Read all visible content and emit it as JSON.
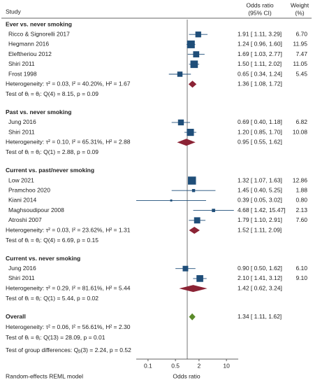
{
  "chart_data": {
    "type": "forest",
    "header": {
      "study": "Study",
      "effect": "Odds ratio",
      "ci": "(95% CI)",
      "weight": "Weight",
      "weight_unit": "(%)"
    },
    "xlabel": "Odds ratio",
    "note": "Random-effects REML model",
    "xscale": "log",
    "xlim": [
      0.05,
      20
    ],
    "xticks": [
      0.1,
      0.5,
      2,
      10
    ],
    "square_color": "#1f4e79",
    "subgroup_color": "#8b2335",
    "overall_color": "#5a8a2a",
    "groups": [
      {
        "name": "Ever vs. never smoking",
        "studies": [
          "Ricco & Signorelli 2017",
          "Hegmann 2016",
          "Eleftheriou 2012",
          "Shiri 2011",
          "Frost 1998"
        ],
        "values": [
          1.91,
          1.24,
          1.69,
          1.5,
          0.65
        ],
        "lo": [
          1.11,
          0.96,
          1.03,
          1.11,
          0.34
        ],
        "hi": [
          3.29,
          1.6,
          2.77,
          2.02,
          1.24
        ],
        "value_labels": [
          "1.91 [ 1.11, 3.29]",
          "1.24 [ 0.96, 1.60]",
          "1.69 [ 1.03, 2.77]",
          "1.50 [ 1.11, 2.02]",
          "0.65 [ 0.34, 1.24]"
        ],
        "weights": [
          6.7,
          11.95,
          7.47,
          11.05,
          5.45
        ],
        "weight_labels": [
          "6.70",
          "11.95",
          "7.47",
          "11.05",
          "5.45"
        ],
        "pooled": {
          "value": 1.36,
          "lo": 1.08,
          "hi": 1.72,
          "label": "1.36 [ 1.08, 1.72]"
        },
        "heterogeneity": "Heterogeneity: τ² = 0.03, I² = 40.20%, H² = 1.67",
        "test": "Test of θᵢ = θⱼ: Q(4) = 8.15, p = 0.09"
      },
      {
        "name": "Past vs. never smoking",
        "studies": [
          "Jung 2016",
          "Shiri 2011"
        ],
        "values": [
          0.69,
          1.2
        ],
        "lo": [
          0.4,
          0.85
        ],
        "hi": [
          1.18,
          1.7
        ],
        "value_labels": [
          "0.69 [ 0.40, 1.18]",
          "1.20 [ 0.85, 1.70]"
        ],
        "weights": [
          6.82,
          10.08
        ],
        "weight_labels": [
          "6.82",
          "10.08"
        ],
        "pooled": {
          "value": 0.95,
          "lo": 0.55,
          "hi": 1.62,
          "label": "0.95 [ 0.55, 1.62]"
        },
        "heterogeneity": "Heterogeneity: τ² = 0.10, I² = 65.31%, H² = 2.88",
        "test": "Test of θᵢ = θⱼ: Q(1) = 2.88, p = 0.09"
      },
      {
        "name": "Current vs. past/never smoking",
        "studies": [
          "Low 2021",
          "Pramchoo 2020",
          "Kiani 2014",
          "Maghsoudipour 2008",
          "Atroshi 2007"
        ],
        "values": [
          1.32,
          1.45,
          0.39,
          4.68,
          1.79
        ],
        "lo": [
          1.07,
          0.4,
          0.05,
          1.42,
          1.1
        ],
        "hi": [
          1.63,
          5.25,
          3.02,
          15.47,
          2.91
        ],
        "value_labels": [
          "1.32 [ 1.07, 1.63]",
          "1.45 [ 0.40, 5.25]",
          "0.39 [ 0.05, 3.02]",
          "4.68 [ 1.42, 15.47]",
          "1.79 [ 1.10, 2.91]"
        ],
        "weights": [
          12.86,
          1.88,
          0.8,
          2.13,
          7.6
        ],
        "weight_labels": [
          "12.86",
          "1.88",
          "0.80",
          "2.13",
          "7.60"
        ],
        "pooled": {
          "value": 1.52,
          "lo": 1.11,
          "hi": 2.09,
          "label": "1.52 [ 1.11, 2.09]"
        },
        "heterogeneity": "Heterogeneity: τ² = 0.03, I² = 23.62%, H² = 1.31",
        "test": "Test of θᵢ = θⱼ: Q(4) = 6.69, p = 0.15"
      },
      {
        "name": "Current vs. never smoking",
        "studies": [
          "Jung 2016",
          "Shiri 2011"
        ],
        "values": [
          0.9,
          2.1
        ],
        "lo": [
          0.5,
          1.41
        ],
        "hi": [
          1.62,
          3.12
        ],
        "value_labels": [
          "0.90 [ 0.50, 1.62]",
          "2.10 [ 1.41, 3.12]"
        ],
        "weights": [
          6.1,
          9.1
        ],
        "weight_labels": [
          "6.10",
          "9.10"
        ],
        "pooled": {
          "value": 1.42,
          "lo": 0.62,
          "hi": 3.24,
          "label": "1.42 [ 0.62, 3.24]"
        },
        "heterogeneity": "Heterogeneity: τ² = 0.29, I² = 81.61%, H² = 5.44",
        "test": "Test of θᵢ = θⱼ: Q(1) = 5.44, p = 0.02"
      }
    ],
    "overall": {
      "name": "Overall",
      "value": 1.34,
      "lo": 1.11,
      "hi": 1.62,
      "label": "1.34 [ 1.11, 1.62]",
      "heterogeneity": "Heterogeneity: τ² = 0.06, I² = 56.61%, H² = 2.30",
      "test": "Test of θᵢ = θⱼ: Q(13) = 28.09, p = 0.01"
    },
    "group_test": "Test of group differences: Qᵦ(3) = 2.24, p = 0.52"
  }
}
